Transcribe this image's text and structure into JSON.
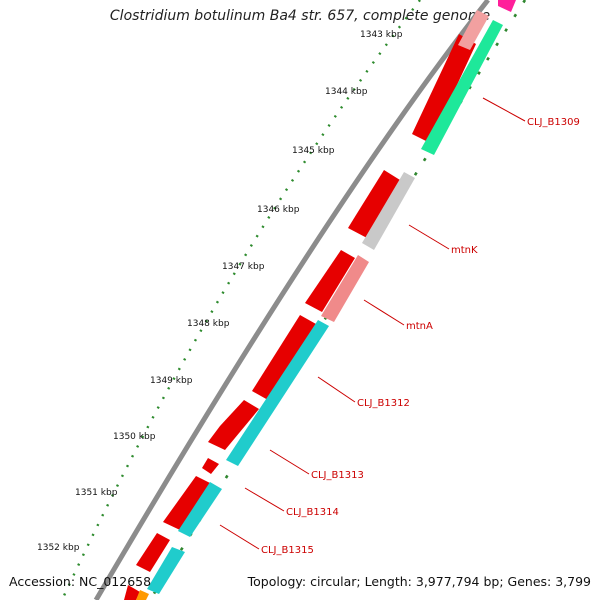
{
  "title": "Clostridium botulinum Ba4 str. 657, complete genome",
  "accession": "Accession: NC_012658",
  "summary": "Topology: circular; Length: 3,977,794 bp; Genes: 3,799",
  "ticks": [
    "1343 kbp",
    "1344 kbp",
    "1345 kbp",
    "1346 kbp",
    "1347 kbp",
    "1348 kbp",
    "1349 kbp",
    "1350 kbp",
    "1351 kbp",
    "1352 kbp"
  ],
  "gene_labels": [
    "CLJ_B1309",
    "mtnK",
    "mtnA",
    "CLJ_B1312",
    "CLJ_B1313",
    "CLJ_B1314",
    "CLJ_B1315"
  ],
  "colors": {
    "backbone": "#8c8c8c",
    "cds_forward": "#ee0000",
    "gene_green": "#22f0a0",
    "gene_gray": "#c8c8c8",
    "gene_pink": "#f08080",
    "gene_cyan": "#20d0d0",
    "gene_magenta": "#ff1f9a",
    "label": "#cc0000",
    "tick": "#006600"
  }
}
